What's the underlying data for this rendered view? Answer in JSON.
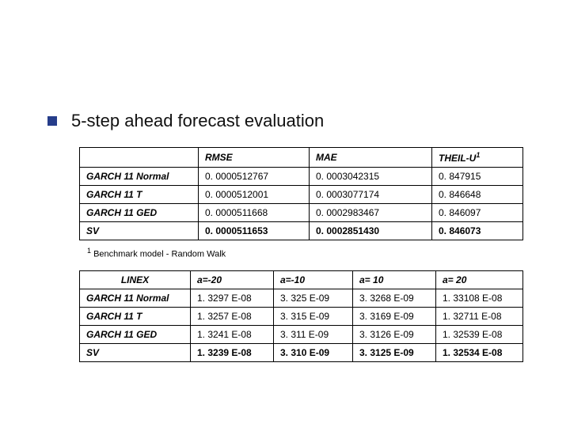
{
  "title": "5-step ahead forecast evaluation",
  "footnote": "Benchmark model - Random Walk",
  "footnote_marker": "1",
  "table1": {
    "headers": [
      "RMSE",
      "MAE",
      "THEIL-U"
    ],
    "theil_sup": "1",
    "rows": [
      {
        "label": "GARCH 11 Normal",
        "c": [
          "0. 0000512767",
          "0. 0003042315",
          "0. 847915"
        ],
        "bold": false
      },
      {
        "label": "GARCH 11 T",
        "c": [
          "0. 0000512001",
          "0. 0003077174",
          "0. 846648"
        ],
        "bold": false
      },
      {
        "label": "GARCH 11 GED",
        "c": [
          "0. 0000511668",
          "0. 0002983467",
          "0. 846097"
        ],
        "bold": false
      },
      {
        "label": "SV",
        "c": [
          "0. 0000511653",
          "0. 0002851430",
          "0. 846073"
        ],
        "bold": true
      }
    ]
  },
  "table2": {
    "corner": "LINEX",
    "headers": [
      "a=-20",
      "a=-10",
      "a= 10",
      "a= 20"
    ],
    "rows": [
      {
        "label": "GARCH 11 Normal",
        "c": [
          "1. 3297 E-08",
          "3. 325 E-09",
          "3. 3268 E-09",
          "1. 33108 E-08"
        ],
        "bold": false
      },
      {
        "label": "GARCH 11 T",
        "c": [
          "1. 3257 E-08",
          "3. 315 E-09",
          "3. 3169 E-09",
          "1. 32711 E-08"
        ],
        "bold": false
      },
      {
        "label": "GARCH 11 GED",
        "c": [
          "1. 3241 E-08",
          "3. 311 E-09",
          "3. 3126 E-09",
          "1. 32539 E-08"
        ],
        "bold": false
      },
      {
        "label": "SV",
        "c": [
          "1. 3239 E-08",
          "3. 310 E-09",
          "3. 3125 E-09",
          "1. 32534 E-08"
        ],
        "bold": true
      }
    ]
  },
  "colors": {
    "bullet": "#263d8a",
    "text": "#000000",
    "background": "#ffffff",
    "border": "#000000"
  }
}
